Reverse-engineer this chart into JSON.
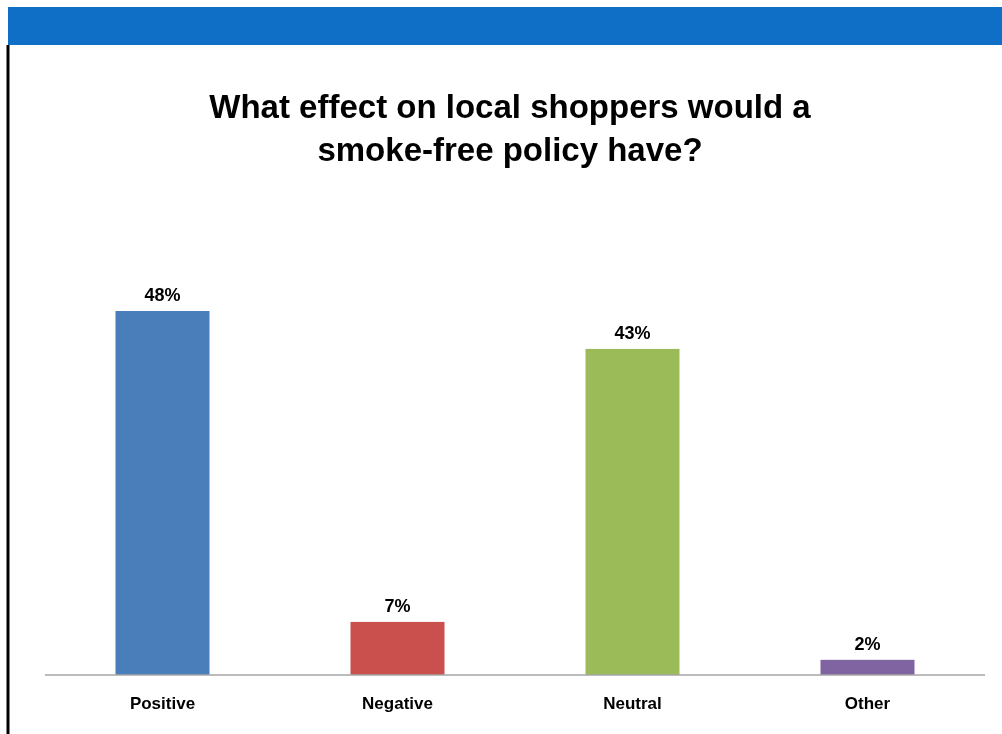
{
  "chart_data": {
    "type": "bar",
    "title": "What effect on local shoppers would a smoke-free policy have?",
    "categories": [
      "Positive",
      "Negative",
      "Neutral",
      "Other"
    ],
    "values": [
      48,
      7,
      43,
      2
    ],
    "value_labels": [
      "48%",
      "7%",
      "43%",
      "2%"
    ],
    "colors": [
      "#4a7ebb",
      "#c9504d",
      "#9bbb59",
      "#8064a2"
    ]
  }
}
